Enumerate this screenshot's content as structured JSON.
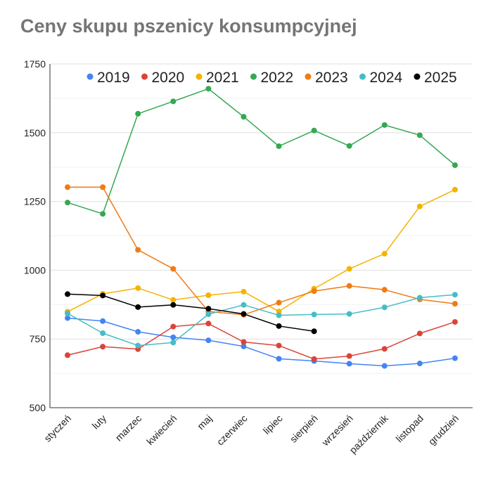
{
  "chart_data": {
    "type": "line",
    "title": "Ceny skupu pszenicy konsumpcyjnej",
    "xlabel": "",
    "ylabel": "",
    "ylim": [
      500,
      1750
    ],
    "yticks": [
      500,
      750,
      1000,
      1250,
      1500,
      1750
    ],
    "grid": true,
    "legend_position": "top",
    "categories": [
      "styczeń",
      "luty",
      "marzec",
      "kwiecień",
      "maj",
      "czerwiec",
      "lipiec",
      "sierpień",
      "wrzesień",
      "październik",
      "listopad",
      "grudzień"
    ],
    "series": [
      {
        "name": "2019",
        "color": "#4285f4",
        "values": [
          826,
          815,
          776,
          756,
          745,
          723,
          678,
          670,
          660,
          652,
          661,
          680
        ]
      },
      {
        "name": "2020",
        "color": "#db4437",
        "values": [
          691,
          722,
          713,
          795,
          806,
          739,
          726,
          677,
          688,
          714,
          770,
          812
        ]
      },
      {
        "name": "2021",
        "color": "#f4b400",
        "values": [
          849,
          914,
          935,
          892,
          909,
          922,
          850,
          933,
          1005,
          1060,
          1232,
          1293
        ]
      },
      {
        "name": "2022",
        "color": "#34a853",
        "values": [
          1246,
          1205,
          1569,
          1614,
          1660,
          1558,
          1451,
          1508,
          1452,
          1528,
          1491,
          1382
        ]
      },
      {
        "name": "2023",
        "color": "#f07b14",
        "values": [
          1302,
          1302,
          1074,
          1005,
          850,
          838,
          882,
          924,
          943,
          929,
          894,
          878
        ]
      },
      {
        "name": "2024",
        "color": "#46bdc6",
        "values": [
          843,
          771,
          726,
          737,
          840,
          874,
          836,
          839,
          841,
          865,
          900,
          911
        ]
      },
      {
        "name": "2025",
        "color": "#000000",
        "values": [
          913,
          908,
          866,
          874,
          860,
          841,
          797,
          778,
          null,
          null,
          null,
          null
        ]
      }
    ]
  }
}
